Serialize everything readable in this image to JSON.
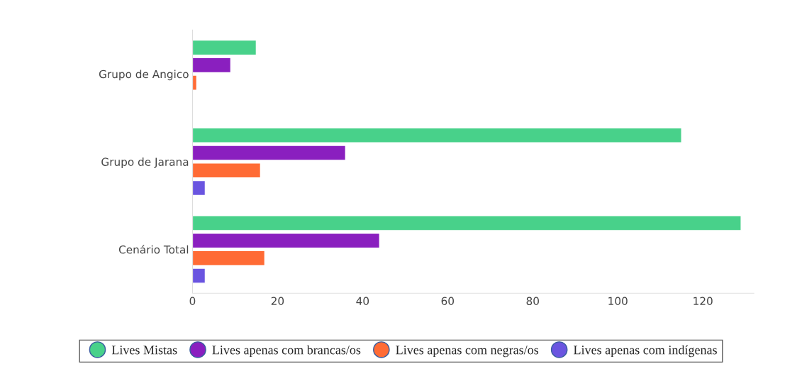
{
  "chart_data": {
    "type": "bar",
    "orientation": "horizontal",
    "categories": [
      "Grupo de Angico",
      "Grupo de Jarana",
      "Cenário Total"
    ],
    "series": [
      {
        "name": "Lives Mistas",
        "color": "#48d18a",
        "values": [
          15,
          115,
          129
        ]
      },
      {
        "name": "Lives apenas com brancas/os",
        "color": "#8a1fbf",
        "values": [
          9,
          36,
          44
        ]
      },
      {
        "name": "Lives apenas com negras/os",
        "color": "#ff6b35",
        "values": [
          1,
          16,
          17
        ]
      },
      {
        "name": "Lives apenas com indígenas",
        "color": "#6a55e0",
        "values": [
          null,
          3,
          3
        ]
      }
    ],
    "xlim": [
      0,
      132
    ],
    "xticks": [
      0,
      20,
      40,
      60,
      80,
      100,
      120
    ],
    "grid": false,
    "legend": "bottom"
  }
}
